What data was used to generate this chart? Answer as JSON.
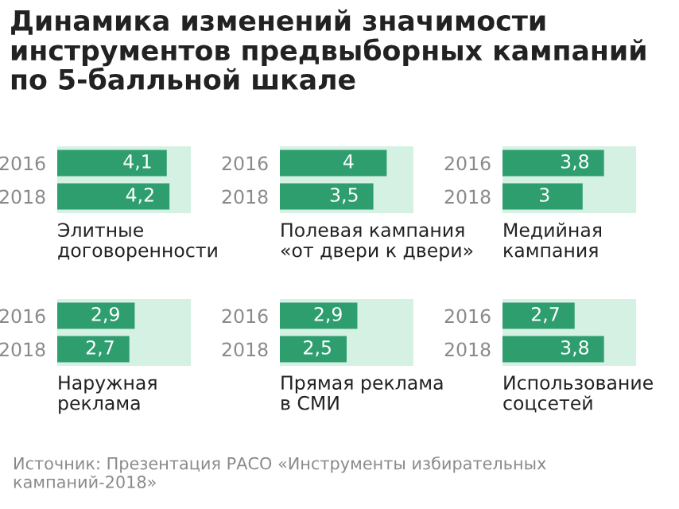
{
  "chart_data": [
    {
      "type": "bar",
      "orientation": "horizontal",
      "title": "Динамика изменений значимости инструментов предвыборных кампаний по 5-балльной шкале",
      "categories": [
        "2016",
        "2018"
      ],
      "values": [
        4.1,
        4.2
      ],
      "value_labels": [
        "4,1",
        "4,2"
      ],
      "color": "#2f9e6f",
      "xlim": [
        0,
        5
      ],
      "tick_labels": "y",
      "xlabel": "Элитные\nдоговоренности"
    },
    {
      "type": "bar",
      "orientation": "horizontal",
      "categories": [
        "2016",
        "2018"
      ],
      "values": [
        4,
        3.5
      ],
      "value_labels": [
        "4",
        "3,5"
      ],
      "color": "#2f9e6f",
      "xlim": [
        0,
        5
      ],
      "tick_labels": "y",
      "xlabel": "Полевая кампания\n«от двери к двери»"
    },
    {
      "type": "bar",
      "orientation": "horizontal",
      "categories": [
        "2016",
        "2018"
      ],
      "values": [
        3.8,
        3
      ],
      "value_labels": [
        "3,8",
        "3"
      ],
      "color": "#2f9e6f",
      "xlim": [
        0,
        5
      ],
      "tick_labels": "y",
      "xlabel": "Медийная\nкампания"
    },
    {
      "type": "bar",
      "orientation": "horizontal",
      "categories": [
        "2016",
        "2018"
      ],
      "values": [
        2.9,
        2.7
      ],
      "value_labels": [
        "2,9",
        "2,7"
      ],
      "color": "#2f9e6f",
      "xlim": [
        0,
        5
      ],
      "tick_labels": "y",
      "xlabel": "Наружная\nреклама"
    },
    {
      "type": "bar",
      "orientation": "horizontal",
      "categories": [
        "2016",
        "2018"
      ],
      "values": [
        2.9,
        2.5
      ],
      "value_labels": [
        "2,9",
        "2,5"
      ],
      "color": "#2f9e6f",
      "xlim": [
        0,
        5
      ],
      "tick_labels": "y",
      "xlabel": "Прямая реклама\nв СМИ"
    },
    {
      "type": "bar",
      "orientation": "horizontal",
      "categories": [
        "2016",
        "2018"
      ],
      "values": [
        2.7,
        3.8
      ],
      "value_labels": [
        "2,7",
        "3,8"
      ],
      "color": "#2f9e6f",
      "xlim": [
        0,
        5
      ],
      "tick_labels": "y",
      "xlabel": "Использование\nсоцсетей",
      "annotations": [
        "Источник: Презентация РАСО «Инструменты избирательных\nкампаний-2018»"
      ]
    }
  ]
}
